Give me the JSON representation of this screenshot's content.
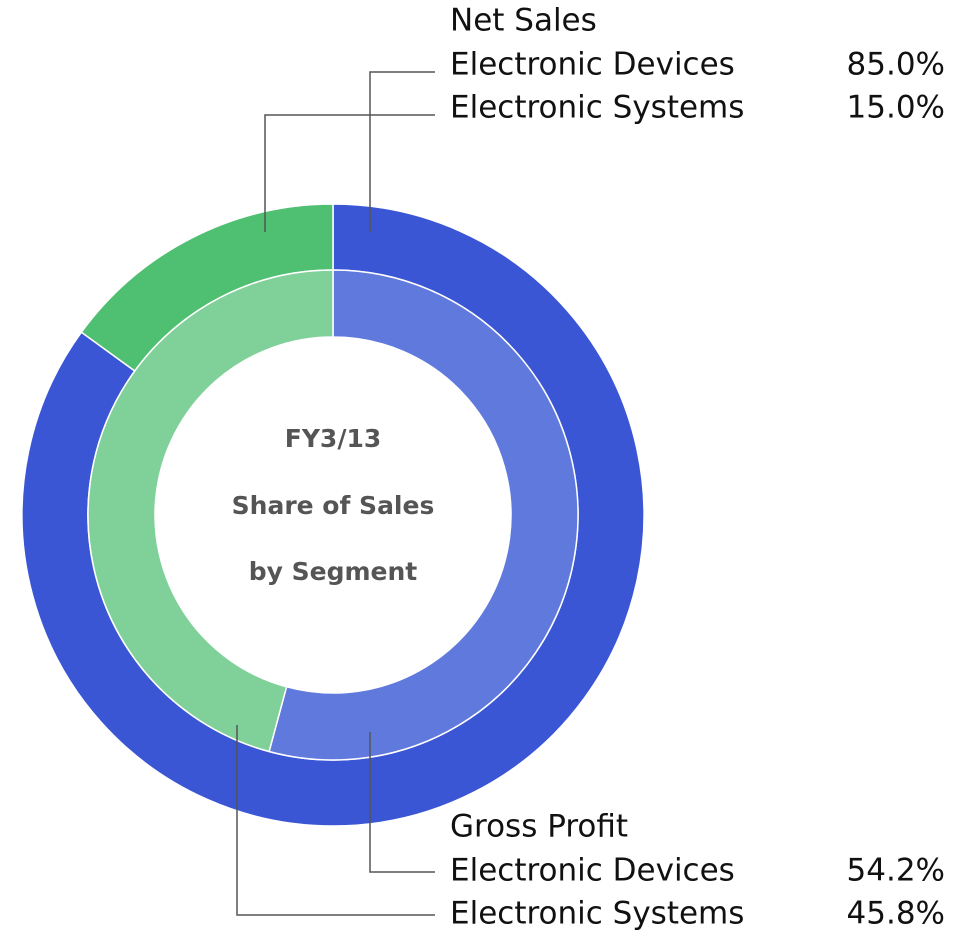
{
  "chart_data": {
    "type": "donut",
    "title": [
      "FY3/13",
      "Share of Sales",
      "by Segment"
    ],
    "series": [
      {
        "name": "Net Sales",
        "categories": [
          "Electronic Devices",
          "Electronic Systems"
        ],
        "values": [
          85.0,
          15.0
        ],
        "value_labels": [
          "85.0%",
          "15.0%"
        ],
        "colors": [
          "#3a56d4",
          "#4fbf72"
        ]
      },
      {
        "name": "Gross Profit",
        "categories": [
          "Electronic Devices",
          "Electronic Systems"
        ],
        "values": [
          54.2,
          45.8
        ],
        "value_labels": [
          "54.2%",
          "45.8%"
        ],
        "colors": [
          "#6079dd",
          "#80d09a"
        ]
      }
    ]
  }
}
